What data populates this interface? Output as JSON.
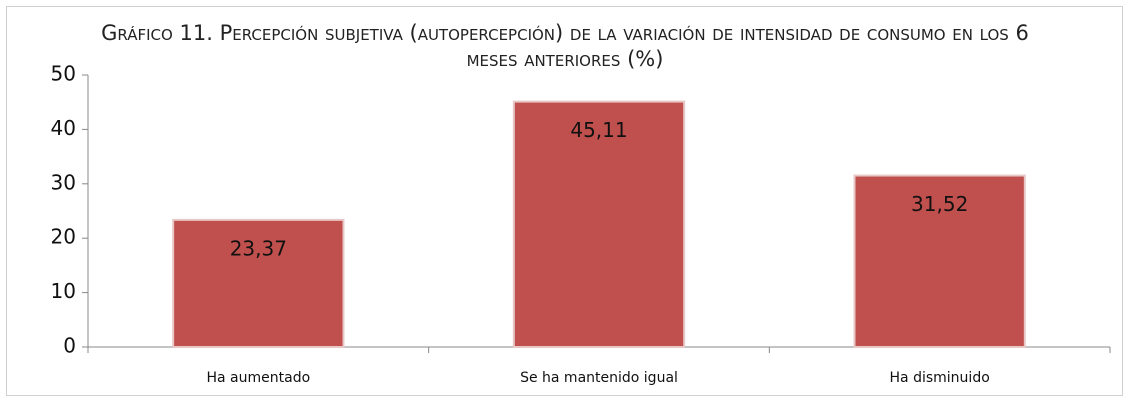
{
  "chart_data": {
    "type": "bar",
    "title": "Gráfico 11. Percepción subjetiva (autopercepción) de la variación de intensidad de consumo en los 6 meses anteriores (%)",
    "categories": [
      "Ha aumentado",
      "Se ha mantenido igual",
      "Ha disminuido"
    ],
    "values": [
      23.37,
      45.11,
      31.52
    ],
    "value_labels": [
      "23,37",
      "45,11",
      "31,52"
    ],
    "color": "#c0504d",
    "ylim": [
      0,
      50
    ],
    "yticks": [
      0,
      10,
      20,
      30,
      40,
      50
    ],
    "grid": false
  }
}
